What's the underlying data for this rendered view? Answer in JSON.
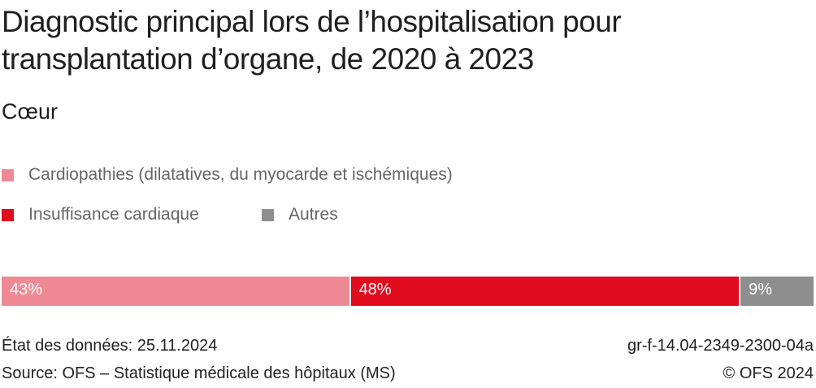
{
  "chart_data": {
    "type": "bar",
    "orientation": "horizontal-stacked-100",
    "title": "Diagnostic principal lors de l’hospitalisation pour transplantation d’organe, de 2020 à 2023",
    "subtitle": "Cœur",
    "categories": [
      "Cœur"
    ],
    "series": [
      {
        "name": "Cardiopathies (dilatatives, du myocarde et ischémiques)",
        "values": [
          43
        ],
        "label": "43%",
        "color": "#EF8A94"
      },
      {
        "name": "Insuffisance cardiaque",
        "values": [
          48
        ],
        "label": "48%",
        "color": "#E00B1C"
      },
      {
        "name": "Autres",
        "values": [
          9
        ],
        "label": "9%",
        "color": "#8E8E8E"
      }
    ],
    "xlim": [
      0,
      100
    ],
    "legend": "top-left"
  },
  "footer": {
    "date": "État des données: 25.11.2024",
    "source": "Source: OFS – Statistique médicale des hôpitaux (MS)",
    "code": "gr-f-14.04-2349-2300-04a",
    "copyright": "© OFS 2024"
  }
}
